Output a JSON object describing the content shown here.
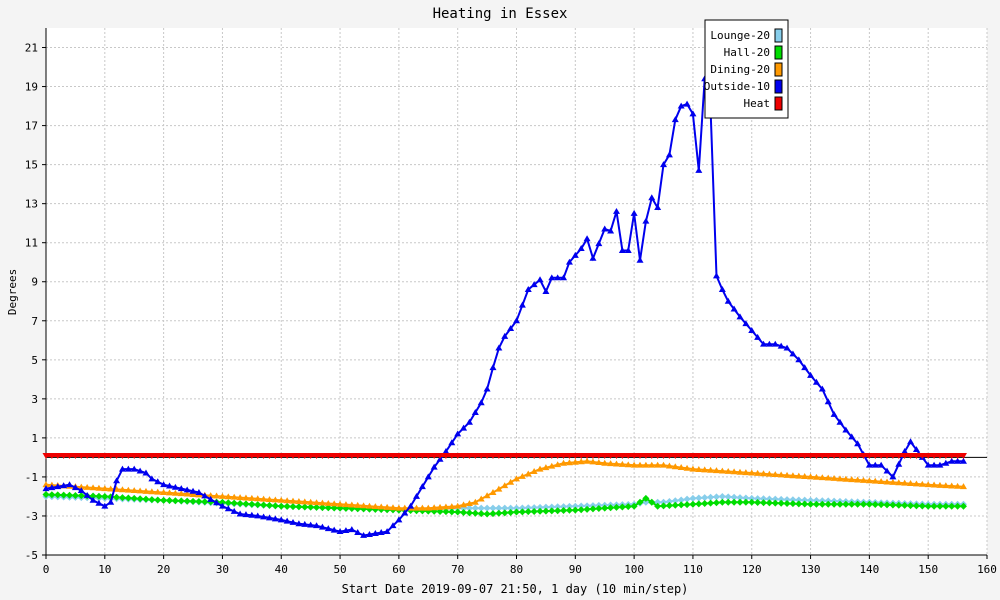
{
  "chart_data": {
    "type": "line",
    "title": "Heating in Essex",
    "xlabel": "Start Date 2019-09-07 21:50, 1 day (10 min/step)",
    "ylabel": "Degrees",
    "xlim": [
      0,
      160
    ],
    "ylim": [
      -5,
      22
    ],
    "x_ticks": [
      0,
      10,
      20,
      30,
      40,
      50,
      60,
      70,
      80,
      90,
      100,
      110,
      120,
      130,
      140,
      150,
      160
    ],
    "y_ticks": [
      -5,
      -3,
      -1,
      1,
      3,
      5,
      7,
      9,
      11,
      13,
      15,
      17,
      19,
      21
    ],
    "grid": true,
    "legend_position": "top-right",
    "series": [
      {
        "name": "Lounge-20",
        "color": "#87ceeb",
        "marker": "diamond",
        "points": [
          [
            0,
            -2.0
          ],
          [
            20,
            -2.2
          ],
          [
            40,
            -2.5
          ],
          [
            60,
            -2.7
          ],
          [
            70,
            -2.6
          ],
          [
            80,
            -2.6
          ],
          [
            90,
            -2.5
          ],
          [
            100,
            -2.4
          ],
          [
            102,
            -2.3
          ],
          [
            105,
            -2.3
          ],
          [
            110,
            -2.1
          ],
          [
            115,
            -2.0
          ],
          [
            120,
            -2.1
          ],
          [
            130,
            -2.2
          ],
          [
            140,
            -2.3
          ],
          [
            150,
            -2.4
          ],
          [
            156,
            -2.4
          ]
        ]
      },
      {
        "name": "Hall-20",
        "color": "#00dd00",
        "marker": "diamond",
        "points": [
          [
            0,
            -1.9
          ],
          [
            10,
            -2.0
          ],
          [
            20,
            -2.2
          ],
          [
            30,
            -2.3
          ],
          [
            40,
            -2.5
          ],
          [
            50,
            -2.6
          ],
          [
            60,
            -2.7
          ],
          [
            70,
            -2.8
          ],
          [
            75,
            -2.9
          ],
          [
            80,
            -2.8
          ],
          [
            90,
            -2.7
          ],
          [
            95,
            -2.6
          ],
          [
            100,
            -2.5
          ],
          [
            102,
            -2.1
          ],
          [
            104,
            -2.5
          ],
          [
            110,
            -2.4
          ],
          [
            115,
            -2.3
          ],
          [
            120,
            -2.3
          ],
          [
            130,
            -2.4
          ],
          [
            140,
            -2.4
          ],
          [
            150,
            -2.5
          ],
          [
            156,
            -2.5
          ]
        ]
      },
      {
        "name": "Dining-20",
        "color": "#ff9900",
        "marker": "triangle",
        "points": [
          [
            0,
            -1.4
          ],
          [
            10,
            -1.6
          ],
          [
            20,
            -1.8
          ],
          [
            30,
            -2.0
          ],
          [
            40,
            -2.2
          ],
          [
            50,
            -2.4
          ],
          [
            60,
            -2.6
          ],
          [
            65,
            -2.6
          ],
          [
            70,
            -2.5
          ],
          [
            73,
            -2.3
          ],
          [
            76,
            -1.8
          ],
          [
            80,
            -1.1
          ],
          [
            84,
            -0.6
          ],
          [
            88,
            -0.3
          ],
          [
            92,
            -0.2
          ],
          [
            95,
            -0.3
          ],
          [
            100,
            -0.4
          ],
          [
            105,
            -0.4
          ],
          [
            110,
            -0.6
          ],
          [
            120,
            -0.8
          ],
          [
            130,
            -1.0
          ],
          [
            140,
            -1.2
          ],
          [
            150,
            -1.4
          ],
          [
            156,
            -1.5
          ]
        ]
      },
      {
        "name": "Outside-10",
        "color": "#0000ee",
        "marker": "triangle",
        "points": [
          [
            0,
            -1.6
          ],
          [
            2,
            -1.5
          ],
          [
            4,
            -1.4
          ],
          [
            6,
            -1.7
          ],
          [
            8,
            -2.2
          ],
          [
            10,
            -2.5
          ],
          [
            11,
            -2.3
          ],
          [
            12,
            -1.2
          ],
          [
            13,
            -0.6
          ],
          [
            15,
            -0.6
          ],
          [
            17,
            -0.8
          ],
          [
            18,
            -1.1
          ],
          [
            20,
            -1.4
          ],
          [
            23,
            -1.6
          ],
          [
            26,
            -1.8
          ],
          [
            30,
            -2.5
          ],
          [
            33,
            -2.9
          ],
          [
            36,
            -3.0
          ],
          [
            40,
            -3.2
          ],
          [
            43,
            -3.4
          ],
          [
            46,
            -3.5
          ],
          [
            50,
            -3.8
          ],
          [
            52,
            -3.7
          ],
          [
            54,
            -4.0
          ],
          [
            58,
            -3.8
          ],
          [
            60,
            -3.2
          ],
          [
            62,
            -2.5
          ],
          [
            64,
            -1.5
          ],
          [
            66,
            -0.5
          ],
          [
            68,
            0.3
          ],
          [
            70,
            1.2
          ],
          [
            72,
            1.8
          ],
          [
            74,
            2.8
          ],
          [
            75,
            3.5
          ],
          [
            76,
            4.6
          ],
          [
            77,
            5.6
          ],
          [
            78,
            6.2
          ],
          [
            80,
            7.0
          ],
          [
            81,
            7.8
          ],
          [
            82,
            8.6
          ],
          [
            84,
            9.1
          ],
          [
            85,
            8.5
          ],
          [
            86,
            9.2
          ],
          [
            88,
            9.2
          ],
          [
            89,
            10.0
          ],
          [
            91,
            10.7
          ],
          [
            92,
            11.2
          ],
          [
            93,
            10.2
          ],
          [
            95,
            11.7
          ],
          [
            96,
            11.6
          ],
          [
            97,
            12.6
          ],
          [
            98,
            10.6
          ],
          [
            99,
            10.6
          ],
          [
            100,
            12.5
          ],
          [
            101,
            10.1
          ],
          [
            102,
            12.1
          ],
          [
            103,
            13.3
          ],
          [
            104,
            12.8
          ],
          [
            105,
            15.0
          ],
          [
            106,
            15.5
          ],
          [
            107,
            17.3
          ],
          [
            108,
            18.0
          ],
          [
            109,
            18.1
          ],
          [
            110,
            17.6
          ],
          [
            111,
            14.7
          ],
          [
            112,
            19.4
          ],
          [
            113,
            17.8
          ],
          [
            114,
            9.3
          ],
          [
            115,
            8.6
          ],
          [
            116,
            8.0
          ],
          [
            118,
            7.2
          ],
          [
            120,
            6.5
          ],
          [
            122,
            5.8
          ],
          [
            124,
            5.8
          ],
          [
            126,
            5.6
          ],
          [
            128,
            5.0
          ],
          [
            130,
            4.2
          ],
          [
            132,
            3.5
          ],
          [
            134,
            2.2
          ],
          [
            136,
            1.4
          ],
          [
            138,
            0.7
          ],
          [
            140,
            -0.4
          ],
          [
            142,
            -0.4
          ],
          [
            144,
            -1.0
          ],
          [
            146,
            0.3
          ],
          [
            147,
            0.8
          ],
          [
            148,
            0.4
          ],
          [
            150,
            -0.4
          ],
          [
            152,
            -0.4
          ],
          [
            154,
            -0.2
          ],
          [
            156,
            -0.2
          ]
        ]
      },
      {
        "name": "Heat",
        "color": "#ee0000",
        "marker": "triangle-down",
        "points": [
          [
            0,
            0.1
          ],
          [
            156,
            0.1
          ]
        ]
      }
    ]
  }
}
